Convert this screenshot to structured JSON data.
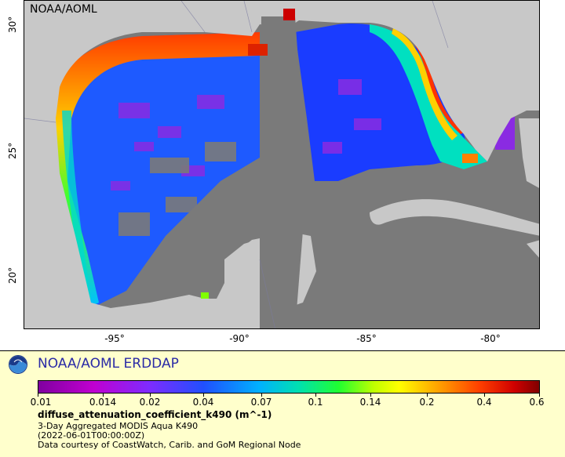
{
  "map": {
    "label": "NOAA/AOML",
    "y_ticks": [
      "30°",
      "25°",
      "20°"
    ],
    "x_ticks": [
      "-95°",
      "-90°",
      "-85°",
      "-80°"
    ]
  },
  "legend": {
    "title": "NOAA/AOML ERDDAP",
    "colorbar_labels": [
      "0.01",
      "0.014",
      "0.02",
      "0.04",
      "0.07",
      "0.1",
      "0.14",
      "0.2",
      "0.4",
      "0.6"
    ],
    "variable": "diffuse_attenuation_coefficient_k490 (m^-1)",
    "dataset": "3-Day Aggregated MODIS Aqua K490",
    "time": "(2022-06-01T00:00:00Z)",
    "credit": "Data courtesy of CoastWatch, Carib. and GoM Regional Node"
  },
  "colors": {
    "land": "#c8c8c8",
    "no_data_ocean": "#7a7a7a",
    "legend_bg": "#ffffcc",
    "title_blue": "#2a2aa6"
  }
}
